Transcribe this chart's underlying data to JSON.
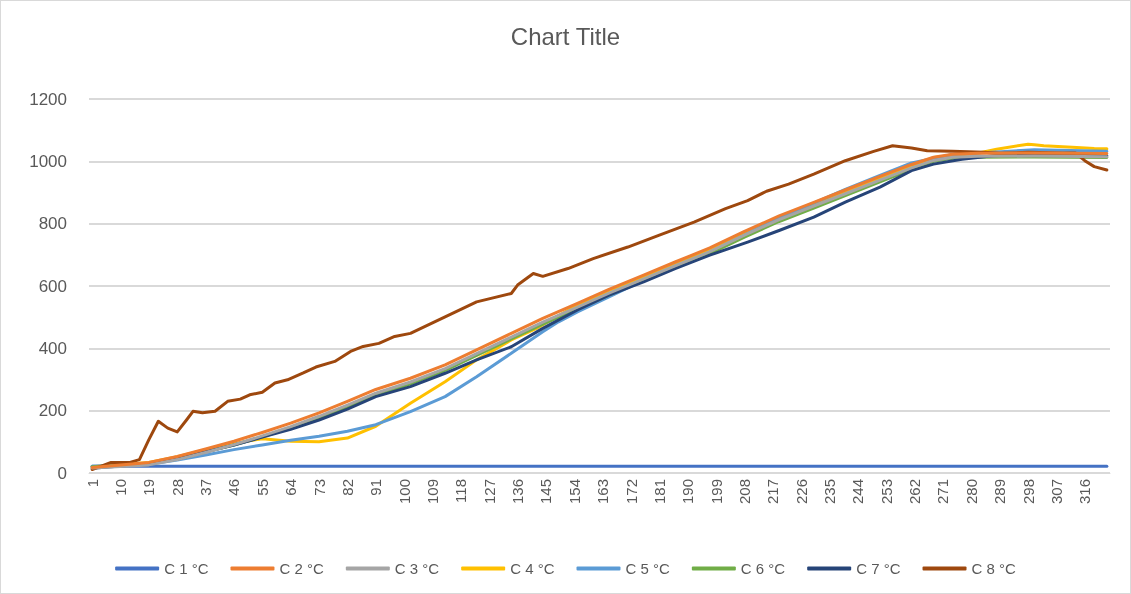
{
  "chart_data": {
    "type": "line",
    "title": "Chart Title",
    "xlim": [
      0,
      324
    ],
    "xticks": [
      1,
      10,
      19,
      28,
      37,
      46,
      55,
      64,
      73,
      82,
      91,
      100,
      109,
      118,
      127,
      136,
      145,
      154,
      163,
      172,
      181,
      190,
      199,
      208,
      217,
      226,
      235,
      244,
      253,
      262,
      271,
      280,
      289,
      298,
      307,
      316
    ],
    "ylim": [
      0,
      1200
    ],
    "yticks": [
      0,
      200,
      400,
      600,
      800,
      1000,
      1200
    ],
    "grid": "y",
    "legend": "bottom",
    "marker": "none",
    "line_style": "solid",
    "series": [
      {
        "name": "C 1 °C",
        "color": "#4472c4",
        "x": [
          1,
          323
        ],
        "values": [
          22,
          22
        ]
      },
      {
        "name": "C 2 °C",
        "color": "#ed7d31",
        "x": [
          1,
          19,
          28,
          37,
          46,
          55,
          64,
          73,
          82,
          91,
          102,
          113,
          123,
          134,
          144,
          155,
          165,
          176,
          186,
          197,
          208,
          219,
          230,
          240,
          251,
          261,
          268,
          274,
          282,
          300,
          323
        ],
        "values": [
          18,
          34,
          53,
          77,
          102,
          130,
          160,
          193,
          230,
          268,
          304,
          347,
          395,
          448,
          496,
          544,
          589,
          635,
          677,
          722,
          775,
          825,
          868,
          908,
          952,
          990,
          1013,
          1023,
          1026,
          1027,
          1025
        ]
      },
      {
        "name": "C 3 °C",
        "color": "#a5a5a5",
        "x": [
          1,
          19,
          28,
          37,
          46,
          55,
          64,
          73,
          82,
          91,
          102,
          113,
          123,
          134,
          144,
          155,
          165,
          176,
          186,
          197,
          208,
          219,
          230,
          240,
          251,
          261,
          268,
          274,
          282,
          300,
          323
        ],
        "values": [
          16,
          26,
          43,
          66,
          91,
          119,
          149,
          182,
          218,
          256,
          292,
          335,
          383,
          436,
          484,
          532,
          577,
          623,
          665,
          710,
          763,
          813,
          856,
          896,
          940,
          979,
          1003,
          1013,
          1016,
          1017,
          1015
        ]
      },
      {
        "name": "C 4 °C",
        "color": "#ffc000",
        "x": [
          1,
          19,
          28,
          37,
          46,
          55,
          64,
          73,
          82,
          91,
          102,
          113,
          123,
          134,
          142,
          155,
          165,
          176,
          186,
          197,
          212,
          230,
          251,
          268,
          282,
          288,
          298,
          300,
          303,
          312,
          319,
          323
        ],
        "values": [
          20,
          34,
          52,
          75,
          95,
          110,
          102,
          100,
          112,
          150,
          224,
          293,
          363,
          427,
          464,
          540,
          585,
          630,
          672,
          716,
          790,
          862,
          947,
          1012,
          1026,
          1039,
          1055,
          1053,
          1050,
          1045,
          1041,
          1040
        ]
      },
      {
        "name": "C 5 °C",
        "color": "#5b9bd5",
        "x": [
          1,
          19,
          28,
          37,
          46,
          55,
          64,
          73,
          82,
          91,
          102,
          113,
          123,
          134,
          144,
          149,
          155,
          165,
          176,
          197,
          219,
          240,
          251,
          261,
          274,
          300,
          323
        ],
        "values": [
          22,
          28,
          42,
          58,
          75,
          90,
          105,
          118,
          134,
          155,
          197,
          245,
          309,
          384,
          453,
          485,
          517,
          565,
          619,
          709,
          818,
          910,
          955,
          995,
          1022,
          1037,
          1032
        ]
      },
      {
        "name": "C 6 °C",
        "color": "#70ad47",
        "x": [
          1,
          19,
          28,
          37,
          46,
          55,
          64,
          73,
          82,
          91,
          102,
          113,
          123,
          134,
          144,
          155,
          165,
          176,
          186,
          197,
          208,
          219,
          230,
          240,
          251,
          261,
          268,
          274,
          282,
          300,
          323
        ],
        "values": [
          20,
          30,
          45,
          68,
          90,
          116,
          144,
          176,
          212,
          250,
          286,
          329,
          377,
          430,
          478,
          526,
          571,
          617,
          659,
          704,
          757,
          807,
          850,
          890,
          934,
          974,
          1000,
          1010,
          1013,
          1014,
          1012
        ]
      },
      {
        "name": "C 7 °C",
        "color": "#264478",
        "x": [
          1,
          19,
          28,
          37,
          46,
          55,
          64,
          73,
          82,
          91,
          102,
          113,
          123,
          134,
          144,
          155,
          165,
          176,
          186,
          197,
          209,
          219,
          230,
          240,
          251,
          261,
          268,
          277,
          287,
          298,
          323
        ],
        "values": [
          15,
          30,
          45,
          68,
          90,
          115,
          140,
          170,
          205,
          245,
          277,
          320,
          363,
          405,
          464,
          523,
          571,
          613,
          656,
          699,
          741,
          778,
          821,
          869,
          917,
          970,
          991,
          1007,
          1018,
          1023,
          1018
        ]
      },
      {
        "name": "C 8 °C",
        "color": "#9e480e",
        "x": [
          1,
          7,
          13,
          16,
          19,
          22,
          25,
          28,
          31,
          33,
          36,
          40,
          44,
          48,
          51,
          55,
          59,
          63,
          68,
          72,
          78,
          83,
          87,
          92,
          97,
          102,
          113,
          123,
          134,
          136,
          141,
          144,
          152,
          160,
          171,
          181,
          192,
          202,
          209,
          215,
          222,
          230,
          240,
          249,
          255,
          261,
          266,
          274,
          284,
          289,
          298,
          309,
          313,
          316,
          319,
          323
        ],
        "values": [
          11,
          34,
          34,
          43,
          107,
          166,
          144,
          132,
          171,
          198,
          193,
          198,
          230,
          237,
          251,
          259,
          289,
          299,
          321,
          340,
          358,
          390,
          406,
          416,
          438,
          448,
          501,
          549,
          576,
          603,
          640,
          631,
          656,
          688,
          725,
          763,
          805,
          848,
          874,
          904,
          927,
          959,
          1002,
          1032,
          1050,
          1043,
          1034,
          1032,
          1029,
          1026,
          1029,
          1027,
          1027,
          1002,
          983,
          972
        ]
      }
    ]
  }
}
